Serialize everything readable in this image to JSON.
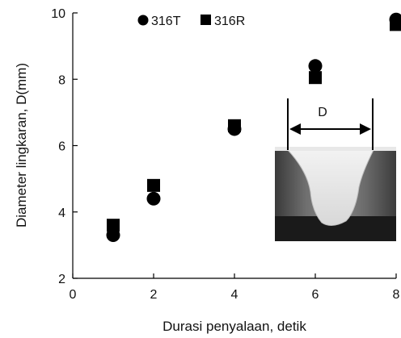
{
  "chart_data": {
    "type": "scatter",
    "title": "",
    "xlabel": "Durasi penyalaan, detik",
    "ylabel": "Diameter lingkaran, D(mm)",
    "xlim": [
      0,
      8
    ],
    "ylim": [
      2,
      10
    ],
    "xticks": [
      0,
      2,
      4,
      6,
      8
    ],
    "yticks": [
      2,
      4,
      6,
      8,
      10
    ],
    "grid": false,
    "legend_position": "top-left",
    "series": [
      {
        "name": "316T",
        "marker": "circle",
        "color": "#000000",
        "x": [
          1,
          2,
          4,
          6,
          8
        ],
        "y": [
          3.3,
          4.4,
          6.5,
          8.4,
          9.8
        ]
      },
      {
        "name": "316R",
        "marker": "square",
        "color": "#000000",
        "x": [
          1,
          2,
          4,
          6,
          8
        ],
        "y": [
          3.6,
          4.8,
          6.6,
          8.05,
          9.65
        ]
      }
    ],
    "annotations": [
      {
        "text": "D",
        "kind": "dimension-arrow-over-weld-cross-section-photo"
      }
    ]
  }
}
